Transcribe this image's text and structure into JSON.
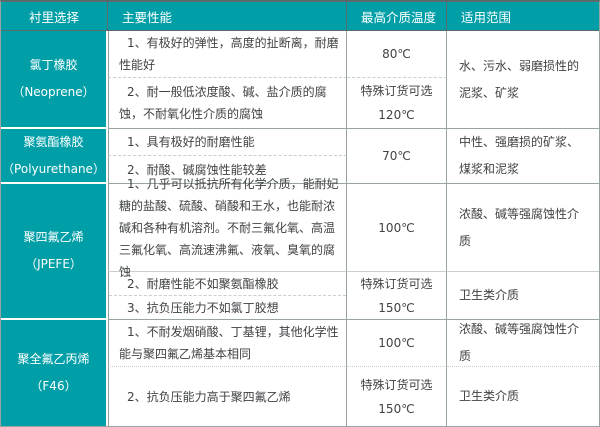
{
  "colors": {
    "teal": "#009fa8",
    "header_border": "#5a6b6b",
    "grid_line": "#9aa3a3",
    "sub_line": "#c9cfcf",
    "text": "#404244",
    "header_text": "#ffffff"
  },
  "header": {
    "lining": "衬里选择",
    "performance": "主要性能",
    "max_temp": "最高介质温度",
    "range": "适用范围"
  },
  "groups": [
    {
      "name": "氯丁橡胶",
      "name_en": "（Neoprene）",
      "perf1": "1、有极好的弹性，高度的扯断离，耐磨性能好",
      "perf2": "2、耐一般低浓度酸、碱、盐介质的腐蚀，不耐氧化性介质的腐蚀",
      "temp1": "80℃",
      "temp2a": "特殊订货可选",
      "temp2b": "120℃",
      "range": "水、污水、弱磨损性的泥浆、矿浆"
    },
    {
      "name": "聚氨酯橡胶",
      "name_en": "（Polyurethane）",
      "perf1": "1、具有极好的耐磨性能",
      "perf2": "2、耐酸、碱腐蚀性能较差",
      "temp": "70℃",
      "range": "中性、强磨损的矿浆、煤浆和泥浆"
    },
    {
      "name": "聚四氟乙烯",
      "name_en": "（JPEFE）",
      "perf1": "1、几乎可以抵抗所有化学介质，能耐妃糖的盐酸、硫酸、硝酸和王水，也能耐浓碱和各种有机溶剂。不耐三氟化氧、高温三氟化氧、高流速沸氟、液氧、臭氧的腐蚀",
      "perf2": "2、耐磨性能不如聚氨酯橡胶",
      "perf3": "3、抗负压能力不如氯丁胶想",
      "temp1": "100℃",
      "temp2a": "特殊订货可选",
      "temp2b": "150℃",
      "range1": "浓酸、碱等强腐蚀性介质",
      "range2": "卫生类介质"
    },
    {
      "name": "聚全氟乙丙烯",
      "name_en": "（F46）",
      "perf1": "1、不耐发烟硝酸、丁基锂，其他化学性能与聚四氟乙烯基本相同",
      "perf2": "2、抗负压能力高于聚四氟乙烯",
      "temp1": "100℃",
      "temp2a": "特殊订货可选",
      "temp2b": "150℃",
      "range1": "浓酸、碱等强腐蚀性介质",
      "range2": "卫生类介质"
    }
  ]
}
